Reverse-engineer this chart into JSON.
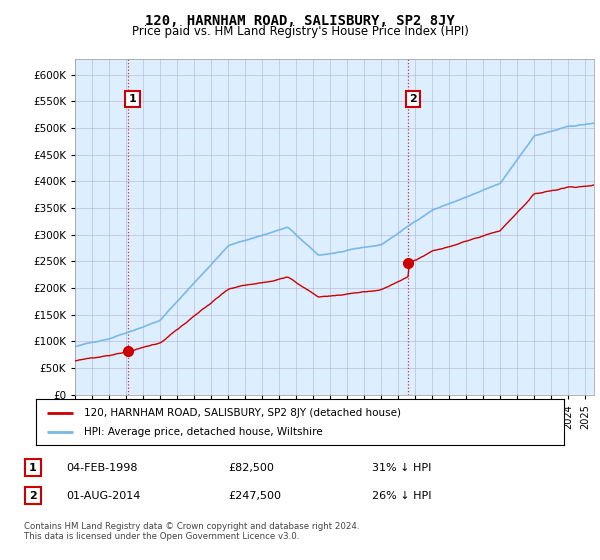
{
  "title": "120, HARNHAM ROAD, SALISBURY, SP2 8JY",
  "subtitle": "Price paid vs. HM Land Registry's House Price Index (HPI)",
  "legend_line1": "120, HARNHAM ROAD, SALISBURY, SP2 8JY (detached house)",
  "legend_line2": "HPI: Average price, detached house, Wiltshire",
  "purchase1_date": "04-FEB-1998",
  "purchase1_price": 82500,
  "purchase1_text": "31% ↓ HPI",
  "purchase1_year": 1998.09,
  "purchase2_date": "01-AUG-2014",
  "purchase2_price": 247500,
  "purchase2_text": "26% ↓ HPI",
  "purchase2_year": 2014.58,
  "footer": "Contains HM Land Registry data © Crown copyright and database right 2024.\nThis data is licensed under the Open Government Licence v3.0.",
  "hpi_color": "#7ab8e8",
  "price_color": "#cc0000",
  "marker_color": "#cc0000",
  "background_color": "#ffffff",
  "chart_bg_color": "#ddeeff",
  "grid_color": "#aaaacc",
  "ylim_max": 630000,
  "yticks": [
    0,
    50000,
    100000,
    150000,
    200000,
    250000,
    300000,
    350000,
    400000,
    450000,
    500000,
    550000,
    600000
  ],
  "xmin": 1995,
  "xmax": 2025.5
}
